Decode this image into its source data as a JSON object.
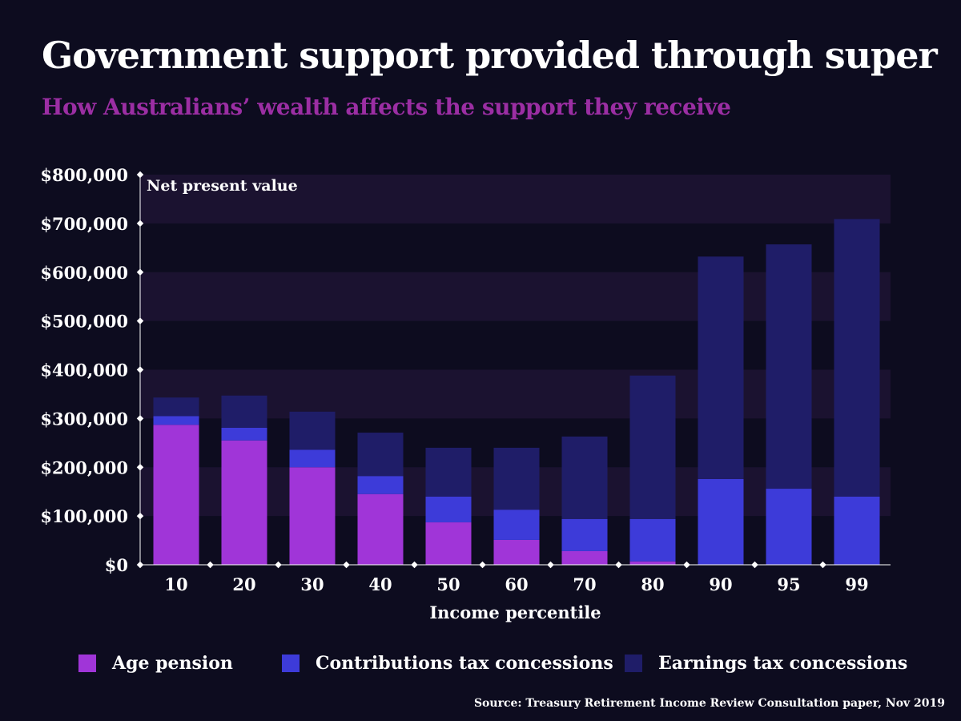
{
  "title": "Government support provided through super",
  "subtitle": "How Australians’ wealth affects the support they receive",
  "source": "Source: Treasury Retirement Income Review Consultation paper, Nov 2019",
  "colors": {
    "background": "#0d0c1f",
    "band": "#1b1230",
    "age": "#a035d8",
    "contrib": "#3d3bd9",
    "earnings": "#1f1d68",
    "subtitle": "#9b2ea3"
  },
  "chart_data": {
    "type": "bar",
    "stacked": true,
    "title": "Government support provided through super",
    "xlabel": "Income percentile",
    "ylabel": "Net present value",
    "ylim": [
      0,
      800000
    ],
    "yticks": [
      0,
      100000,
      200000,
      300000,
      400000,
      500000,
      600000,
      700000,
      800000
    ],
    "ytick_labels": [
      "$0",
      "$100,000",
      "$200,000",
      "$300,000",
      "$400,000",
      "$500,000",
      "$600,000",
      "$700,000",
      "$800,000"
    ],
    "categories": [
      "10",
      "20",
      "30",
      "40",
      "50",
      "60",
      "70",
      "80",
      "90",
      "95",
      "99"
    ],
    "series": [
      {
        "name": "Age pension",
        "key": "age",
        "values": [
          287000,
          255000,
          200000,
          145000,
          87000,
          51000,
          28000,
          7000,
          0,
          0,
          0
        ]
      },
      {
        "name": "Contributions tax concessions",
        "key": "contrib",
        "values": [
          18000,
          26000,
          36000,
          37000,
          53000,
          62000,
          66000,
          87000,
          176000,
          156000,
          140000
        ]
      },
      {
        "name": "Earnings tax concessions",
        "key": "earnings",
        "values": [
          38000,
          66000,
          78000,
          89000,
          100000,
          127000,
          169000,
          294000,
          456000,
          501000,
          569000
        ]
      }
    ],
    "legend_position": "bottom"
  }
}
